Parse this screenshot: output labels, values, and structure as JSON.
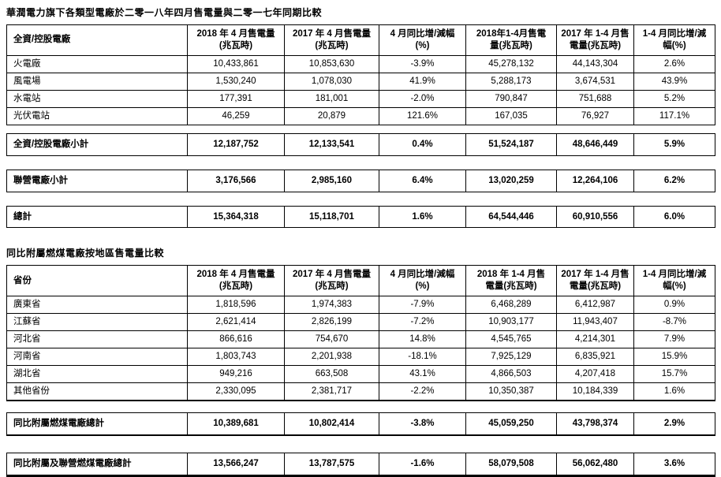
{
  "colors": {
    "text": "#000000",
    "border": "#000000",
    "background": "#ffffff"
  },
  "document": {
    "section1": {
      "title": "華潤電力旗下各類型電廠於二零一八年四月售電量與二零一七年同期比較",
      "headers": [
        {
          "l1": "全資/控股電廠",
          "l2": ""
        },
        {
          "l1": "2018 年 4 月售電量",
          "l2": "(兆瓦時)"
        },
        {
          "l1": "2017 年 4 月售電量",
          "l2": "(兆瓦時)"
        },
        {
          "l1": "4 月同比增/減幅",
          "l2": "(%)"
        },
        {
          "l1": "2018年1-4月售電",
          "l2": "量(兆瓦時)"
        },
        {
          "l1": "2017 年 1-4 月售",
          "l2": "電量(兆瓦時)"
        },
        {
          "l1": "1-4 月同比增/減",
          "l2": "幅(%)"
        }
      ],
      "rows": [
        [
          "火電廠",
          "10,433,861",
          "10,853,630",
          "-3.9%",
          "45,278,132",
          "44,143,304",
          "2.6%"
        ],
        [
          "風電場",
          "1,530,240",
          "1,078,030",
          "41.9%",
          "5,288,173",
          "3,674,531",
          "43.9%"
        ],
        [
          "水電站",
          "177,391",
          "181,001",
          "-2.0%",
          "790,847",
          "751,688",
          "5.2%"
        ],
        [
          "光伏電站",
          "46,259",
          "20,879",
          "121.6%",
          "167,035",
          "76,927",
          "117.1%"
        ]
      ],
      "subtotal1": [
        "全資/控股電廠小計",
        "12,187,752",
        "12,133,541",
        "0.4%",
        "51,524,187",
        "48,646,449",
        "5.9%"
      ],
      "subtotal2": [
        "聯營電廠小計",
        "3,176,566",
        "2,985,160",
        "6.4%",
        "13,020,259",
        "12,264,106",
        "6.2%"
      ],
      "total": [
        "總計",
        "15,364,318",
        "15,118,701",
        "1.6%",
        "64,544,446",
        "60,910,556",
        "6.0%"
      ]
    },
    "section2": {
      "title": "同比附屬燃煤電廠按地區售電量比較",
      "headers": [
        {
          "l1": "省份",
          "l2": ""
        },
        {
          "l1": "2018 年 4 月售電量",
          "l2": "(兆瓦時)"
        },
        {
          "l1": "2017 年 4 月售電量",
          "l2": "(兆瓦時)"
        },
        {
          "l1": "4 月同比增/減幅",
          "l2": "(%)"
        },
        {
          "l1": "2018 年 1-4 月售",
          "l2": "電量(兆瓦時)"
        },
        {
          "l1": "2017 年 1-4 月售",
          "l2": "電量(兆瓦時)"
        },
        {
          "l1": "1-4 月同比增/減",
          "l2": "幅(%)"
        }
      ],
      "rows": [
        [
          "廣東省",
          "1,818,596",
          "1,974,383",
          "-7.9%",
          "6,468,289",
          "6,412,987",
          "0.9%"
        ],
        [
          "江蘇省",
          "2,621,414",
          "2,826,199",
          "-7.2%",
          "10,903,177",
          "11,943,407",
          "-8.7%"
        ],
        [
          "河北省",
          "866,616",
          "754,670",
          "14.8%",
          "4,545,765",
          "4,214,301",
          "7.9%"
        ],
        [
          "河南省",
          "1,803,743",
          "2,201,938",
          "-18.1%",
          "7,925,129",
          "6,835,921",
          "15.9%"
        ],
        [
          "湖北省",
          "949,216",
          "663,508",
          "43.1%",
          "4,866,503",
          "4,207,418",
          "15.7%"
        ],
        [
          "其他省份",
          "2,330,095",
          "2,381,717",
          "-2.2%",
          "10,350,387",
          "10,184,339",
          "1.6%"
        ]
      ],
      "total1": [
        "同比附屬燃煤電廠總計",
        "10,389,681",
        "10,802,414",
        "-3.8%",
        "45,059,250",
        "43,798,374",
        "2.9%"
      ],
      "total2": [
        "同比附屬及聯營燃煤電廠總計",
        "13,566,247",
        "13,787,575",
        "-1.6%",
        "58,079,508",
        "56,062,480",
        "3.6%"
      ]
    }
  }
}
